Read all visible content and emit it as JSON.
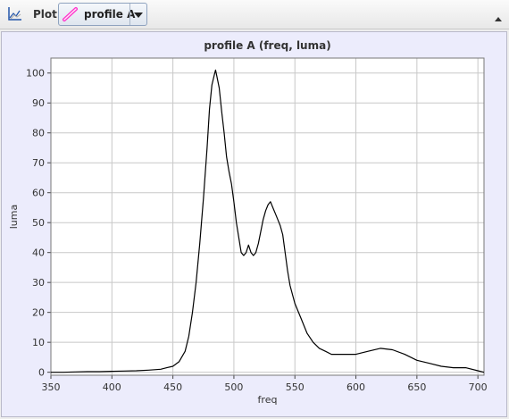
{
  "toolbar": {
    "title": "Plot",
    "selected_profile": "profile A",
    "icons": {
      "plot": "plot-axes-icon",
      "profile": "profile-line-icon",
      "dropdown": "chevron-down-icon",
      "collapse": "collapse-up-icon"
    }
  },
  "colors": {
    "plot_bg": "#ececfc",
    "line": "#000000",
    "grid": "#c8c8c8",
    "profile_icon": "#ff33cc"
  },
  "chart_data": {
    "type": "line",
    "title": "profile A (freq, luma)",
    "xlabel": "freq",
    "ylabel": "luma",
    "xlim": [
      350,
      705
    ],
    "ylim": [
      -1,
      105
    ],
    "xticks": [
      350,
      400,
      450,
      500,
      550,
      600,
      650,
      700
    ],
    "yticks": [
      0,
      10,
      20,
      30,
      40,
      50,
      60,
      70,
      80,
      90,
      100
    ],
    "grid": true,
    "series": [
      {
        "x": [
          350,
          360,
          370,
          380,
          390,
          400,
          410,
          420,
          430,
          440,
          445,
          450,
          455,
          460,
          463,
          466,
          469,
          472,
          475,
          478,
          480,
          482,
          484,
          485,
          486,
          488,
          490,
          492,
          494,
          496,
          498,
          500,
          502,
          504,
          506,
          508,
          510,
          512,
          514,
          516,
          518,
          520,
          522,
          524,
          526,
          528,
          530,
          532,
          534,
          536,
          538,
          540,
          542,
          544,
          546,
          548,
          550,
          555,
          560,
          565,
          570,
          575,
          580,
          590,
          600,
          610,
          620,
          630,
          640,
          650,
          660,
          670,
          680,
          690,
          700,
          705
        ],
        "y": [
          0,
          0,
          0.1,
          0.2,
          0.2,
          0.3,
          0.4,
          0.5,
          0.7,
          1,
          1.5,
          2,
          3.5,
          7,
          12,
          20,
          30,
          43,
          58,
          75,
          88,
          96,
          99.5,
          101,
          99,
          95,
          87,
          80,
          72,
          67,
          63,
          57,
          50,
          45,
          40,
          39,
          40,
          42.5,
          40,
          39,
          40,
          43,
          47,
          51,
          54,
          56,
          57,
          55,
          53,
          51,
          49,
          46,
          40,
          34,
          29,
          26,
          23,
          18,
          13,
          10,
          8,
          7,
          6,
          6,
          6,
          7,
          8,
          7.5,
          6,
          4,
          3,
          2,
          1.5,
          1.5,
          0.5,
          0
        ]
      }
    ]
  }
}
